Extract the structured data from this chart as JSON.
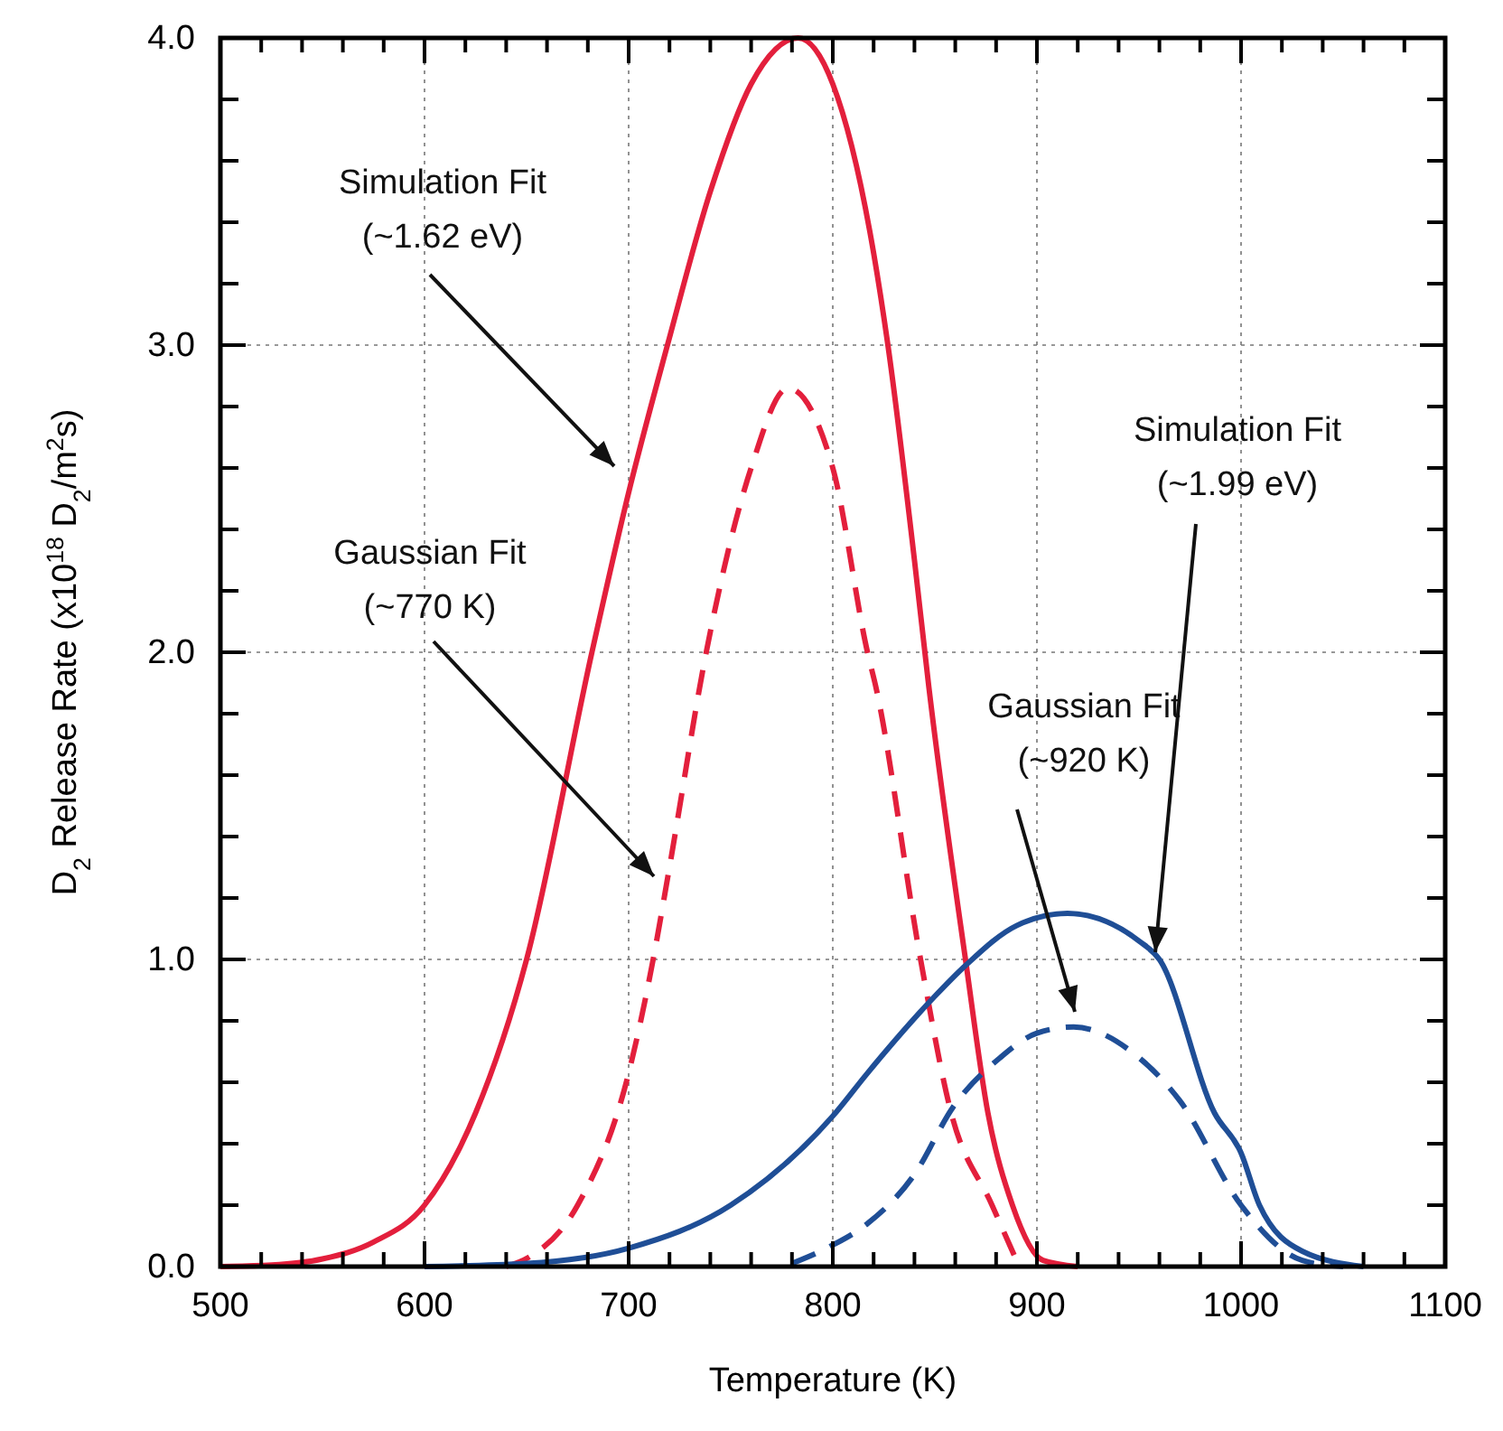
{
  "chart_data": {
    "type": "line",
    "xlabel": "Temperature (K)",
    "ylabel": "D$_{2}$ Release Rate (x10$^{18}$ D$_{2}$/m$^{2}$s)",
    "xlim": [
      500,
      1100
    ],
    "ylim": [
      0,
      4.0
    ],
    "xticks": [
      500,
      {
        "value": 520,
        "label": null
      },
      {
        "value": 540,
        "label": null
      },
      {
        "value": 560,
        "label": null
      },
      {
        "value": 580,
        "label": null
      },
      600,
      {
        "value": 620,
        "label": null
      },
      {
        "value": 640,
        "label": null
      },
      {
        "value": 660,
        "label": null
      },
      {
        "value": 680,
        "label": null
      },
      700,
      {
        "value": 720,
        "label": null
      },
      {
        "value": 740,
        "label": null
      },
      {
        "value": 760,
        "label": null
      },
      {
        "value": 780,
        "label": null
      },
      800,
      {
        "value": 820,
        "label": null
      },
      {
        "value": 840,
        "label": null
      },
      {
        "value": 860,
        "label": null
      },
      {
        "value": 880,
        "label": null
      },
      900,
      {
        "value": 920,
        "label": null
      },
      {
        "value": 940,
        "label": null
      },
      {
        "value": 960,
        "label": null
      },
      {
        "value": 980,
        "label": null
      },
      1000,
      {
        "value": 1020,
        "label": null
      },
      {
        "value": 1040,
        "label": null
      },
      {
        "value": 1060,
        "label": null
      },
      {
        "value": 1080,
        "label": null
      },
      1100
    ],
    "yticks": [
      {
        "value": 0,
        "label": "0.0"
      },
      {
        "value": 0.2,
        "label": null
      },
      {
        "value": 0.4,
        "label": null
      },
      {
        "value": 0.6,
        "label": null
      },
      {
        "value": 0.8,
        "label": null
      },
      {
        "value": 1.0,
        "label": "1.0"
      },
      {
        "value": 1.2,
        "label": null
      },
      {
        "value": 1.4,
        "label": null
      },
      {
        "value": 1.6,
        "label": null
      },
      {
        "value": 1.8,
        "label": null
      },
      {
        "value": 2.0,
        "label": "2.0"
      },
      {
        "value": 2.2,
        "label": null
      },
      {
        "value": 2.4,
        "label": null
      },
      {
        "value": 2.6,
        "label": null
      },
      {
        "value": 2.8,
        "label": null
      },
      {
        "value": 3.0,
        "label": "3.0"
      },
      {
        "value": 3.2,
        "label": null
      },
      {
        "value": 3.4,
        "label": null
      },
      {
        "value": 3.6,
        "label": null
      },
      {
        "value": 3.8,
        "label": null
      },
      {
        "value": 4.0,
        "label": "4.0"
      }
    ],
    "grid": true,
    "marker": "none",
    "series": [
      {
        "color": "#e31f3c",
        "line_style": "solid",
        "x": [
          500,
          525,
          550,
          575,
          600,
          625,
          650,
          682,
          700,
          719,
          740,
          760,
          783,
          800,
          820,
          827,
          840,
          847,
          865,
          876,
          888,
          903,
          920
        ],
        "values": [
          0,
          0.005,
          0.025,
          0.08,
          0.2,
          0.5,
          1.0,
          2.0,
          2.52,
          3.0,
          3.5,
          3.85,
          4.0,
          3.85,
          3.3,
          3.0,
          2.3,
          1.89,
          1.0,
          0.5,
          0.2,
          0.02,
          0
        ]
      },
      {
        "color": "#e31f3c",
        "line_style": "dashed",
        "x": [
          640,
          651,
          675,
          700,
          712,
          720,
          738,
          760,
          778,
          800,
          817,
          821,
          843,
          858,
          878,
          890
        ],
        "values": [
          0,
          0.03,
          0.2,
          0.63,
          1.0,
          1.3,
          2.0,
          2.6,
          2.86,
          2.6,
          2.0,
          1.89,
          1.0,
          0.5,
          0.2,
          0.02
        ]
      },
      {
        "color": "#1f4e96",
        "line_style": "solid",
        "x": [
          600,
          650,
          700,
          750,
          800,
          817,
          850,
          865,
          890,
          915,
          950,
          960,
          987,
          1000,
          1009,
          1030,
          1060
        ],
        "values": [
          0,
          0.01,
          0.06,
          0.2,
          0.49,
          0.63,
          0.88,
          0.98,
          1.11,
          1.15,
          1.06,
          1.0,
          0.5,
          0.37,
          0.2,
          0.05,
          0
        ]
      },
      {
        "color": "#1f4e96",
        "line_style": "dashed",
        "x": [
          780,
          800,
          817,
          840,
          859,
          882,
          900,
          918,
          950,
          970,
          1000,
          1030,
          1050
        ],
        "values": [
          0.01,
          0.07,
          0.14,
          0.3,
          0.52,
          0.68,
          0.76,
          0.78,
          0.68,
          0.54,
          0.2,
          0.02,
          0
        ]
      }
    ],
    "annotations": [
      "Simulation Fit\n(~1.62 eV)",
      "Gaussian Fit\n(~770 K)",
      {
        "text": "Simulation Fit\n(~1.99 eV)",
        "x": 958,
        "y": 1.0
      },
      "Gaussian Fit\n(~920 K)"
    ]
  }
}
